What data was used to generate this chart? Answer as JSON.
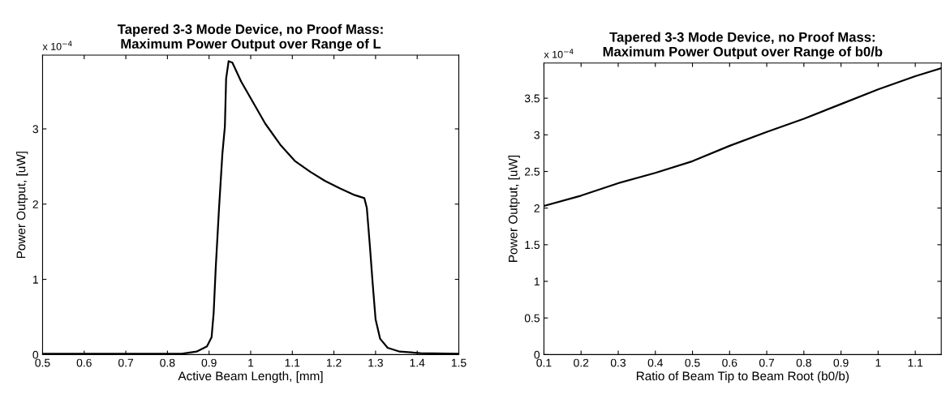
{
  "chart_data": [
    {
      "type": "line",
      "title": "Tapered 3-3 Mode Device, no Proof Mass:\nMaximum Power Output over Range of L",
      "xlabel": "Active Beam Length, [mm]",
      "ylabel": "Power Output, [uW]",
      "annotations": [
        "x 10$^{−4}$"
      ],
      "x": [
        0.5,
        0.7,
        0.834,
        0.87,
        0.895,
        0.906,
        0.911,
        0.916,
        0.924,
        0.932,
        0.938,
        0.941,
        0.947,
        0.956,
        0.977,
        1.006,
        1.035,
        1.071,
        1.107,
        1.143,
        1.178,
        1.214,
        1.25,
        1.273,
        1.279,
        1.286,
        1.293,
        1.3,
        1.311,
        1.329,
        1.358,
        1.408,
        1.5
      ],
      "series": [
        {
          "color": "#000000",
          "values": [
            0.01,
            0.01,
            0.01,
            0.04,
            0.11,
            0.23,
            0.55,
            1.15,
            1.95,
            2.67,
            3.03,
            3.67,
            3.9,
            3.88,
            3.63,
            3.35,
            3.07,
            2.79,
            2.57,
            2.43,
            2.31,
            2.21,
            2.12,
            2.08,
            1.95,
            1.47,
            0.95,
            0.47,
            0.21,
            0.09,
            0.04,
            0.02,
            0.01
          ]
        }
      ],
      "xlim": [
        0.5,
        1.5
      ],
      "xticks": [
        0.5,
        0.6,
        0.7,
        0.8,
        0.9,
        1,
        1.1,
        1.2,
        1.3,
        1.4,
        1.5
      ],
      "ylim": [
        0,
        3.98
      ],
      "yticks": [
        0,
        1,
        2,
        3
      ],
      "grid": false,
      "legend": false
    },
    {
      "type": "line",
      "title": "Tapered 3-3 Mode Device, no Proof Mass:\nMaximum Power Output over Range of b0/b",
      "xlabel": "Ratio of Beam Tip to Beam Root (b0/b)",
      "ylabel": "Power Output, [uW]",
      "annotations": [
        "x 10$^{−4}$"
      ],
      "x": [
        0.1,
        0.2,
        0.3,
        0.4,
        0.5,
        0.6,
        0.7,
        0.8,
        0.9,
        1.0,
        1.1,
        1.17
      ],
      "series": [
        {
          "color": "#000000",
          "values": [
            2.03,
            2.17,
            2.34,
            2.48,
            2.64,
            2.85,
            3.04,
            3.22,
            3.42,
            3.62,
            3.8,
            3.91
          ]
        }
      ],
      "xlim": [
        0.1,
        1.17
      ],
      "xticks": [
        0.1,
        0.2,
        0.3,
        0.4,
        0.5,
        0.6,
        0.7,
        0.8,
        0.9,
        1,
        1.1
      ],
      "ylim": [
        0,
        3.98
      ],
      "yticks": [
        0,
        0.5,
        1,
        1.5,
        2,
        2.5,
        3,
        3.5
      ],
      "grid": false,
      "legend": false
    }
  ]
}
